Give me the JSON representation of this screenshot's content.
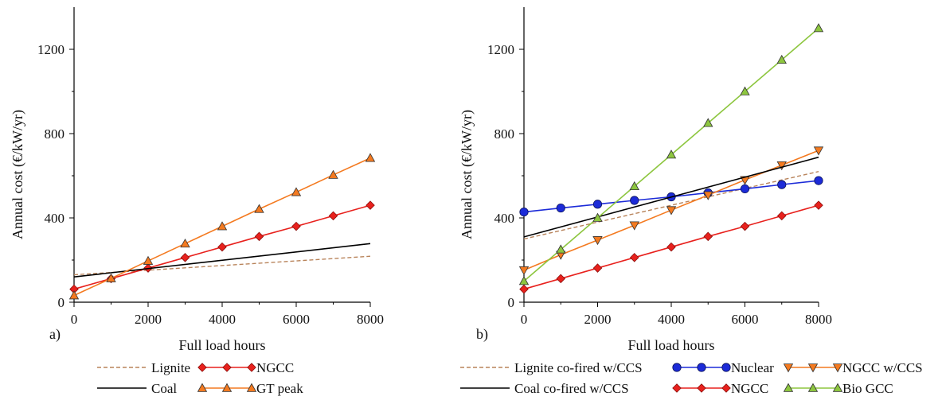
{
  "chart_data": [
    {
      "type": "line",
      "panel_label": "a)",
      "xlabel": "Full load hours",
      "ylabel": "Annual cost (€/kW/yr)",
      "xlim": [
        0,
        8000
      ],
      "ylim": [
        0,
        1400
      ],
      "xticks": [
        0,
        2000,
        4000,
        6000,
        8000
      ],
      "yticks": [
        0,
        400,
        800,
        1200
      ],
      "grid": false,
      "legend": {
        "placement": "bottom",
        "columns": 2
      },
      "series": [
        {
          "name": "Lignite",
          "style": "dashed",
          "color": "#b8835a",
          "marker": "none",
          "x": [
            0,
            8000
          ],
          "y": [
            130,
            218
          ]
        },
        {
          "name": "NGCC",
          "style": "solid",
          "color": "#e8211d",
          "marker": "diamond",
          "x": [
            0,
            1000,
            2000,
            3000,
            4000,
            5000,
            6000,
            7000,
            8000
          ],
          "y": [
            62,
            112,
            162,
            212,
            262,
            312,
            360,
            410,
            460
          ]
        },
        {
          "name": "Coal",
          "style": "solid",
          "color": "#000000",
          "marker": "none",
          "x": [
            0,
            8000
          ],
          "y": [
            120,
            278
          ]
        },
        {
          "name": "GT peak",
          "style": "solid",
          "color": "#f47a20",
          "marker": "triangle-up",
          "x": [
            0,
            1000,
            2000,
            3000,
            4000,
            5000,
            6000,
            7000,
            8000
          ],
          "y": [
            32,
            113,
            196,
            278,
            360,
            442,
            522,
            604,
            684
          ]
        }
      ]
    },
    {
      "type": "line",
      "panel_label": "b)",
      "xlabel": "Full load hours",
      "ylabel": "Annual cost (€/kW/yr)",
      "xlim": [
        0,
        8000
      ],
      "ylim": [
        0,
        1400
      ],
      "xticks": [
        0,
        2000,
        4000,
        6000,
        8000
      ],
      "yticks": [
        0,
        400,
        800,
        1200
      ],
      "grid": false,
      "legend": {
        "placement": "bottom",
        "columns": 3
      },
      "series": [
        {
          "name": "Lignite co-fired w/CCS",
          "style": "dashed",
          "color": "#b8835a",
          "marker": "none",
          "x": [
            0,
            8000
          ],
          "y": [
            300,
            620
          ]
        },
        {
          "name": "Nuclear",
          "style": "solid",
          "color": "#1c2bd8",
          "marker": "circle",
          "x": [
            0,
            1000,
            2000,
            3000,
            4000,
            5000,
            6000,
            7000,
            8000
          ],
          "y": [
            428,
            447,
            465,
            483,
            500,
            519,
            538,
            558,
            577
          ]
        },
        {
          "name": "NGCC w/CCS",
          "style": "solid",
          "color": "#f47a20",
          "marker": "triangle-down",
          "x": [
            0,
            1000,
            2000,
            3000,
            4000,
            5000,
            6000,
            7000,
            8000
          ],
          "y": [
            152,
            225,
            295,
            365,
            437,
            508,
            580,
            650,
            720
          ]
        },
        {
          "name": "Coal co-fired w/CCS",
          "style": "solid",
          "color": "#000000",
          "marker": "none",
          "x": [
            0,
            8000
          ],
          "y": [
            310,
            688
          ]
        },
        {
          "name": "NGCC",
          "style": "solid",
          "color": "#e8211d",
          "marker": "diamond",
          "x": [
            0,
            1000,
            2000,
            3000,
            4000,
            5000,
            6000,
            7000,
            8000
          ],
          "y": [
            62,
            112,
            162,
            212,
            262,
            312,
            360,
            410,
            460
          ]
        },
        {
          "name": "Bio GCC",
          "style": "solid",
          "color": "#8dc63f",
          "marker": "triangle-up",
          "x": [
            0,
            1000,
            2000,
            3000,
            4000,
            5000,
            6000,
            7000,
            8000
          ],
          "y": [
            100,
            250,
            400,
            550,
            700,
            850,
            1000,
            1150,
            1300
          ]
        }
      ]
    }
  ]
}
